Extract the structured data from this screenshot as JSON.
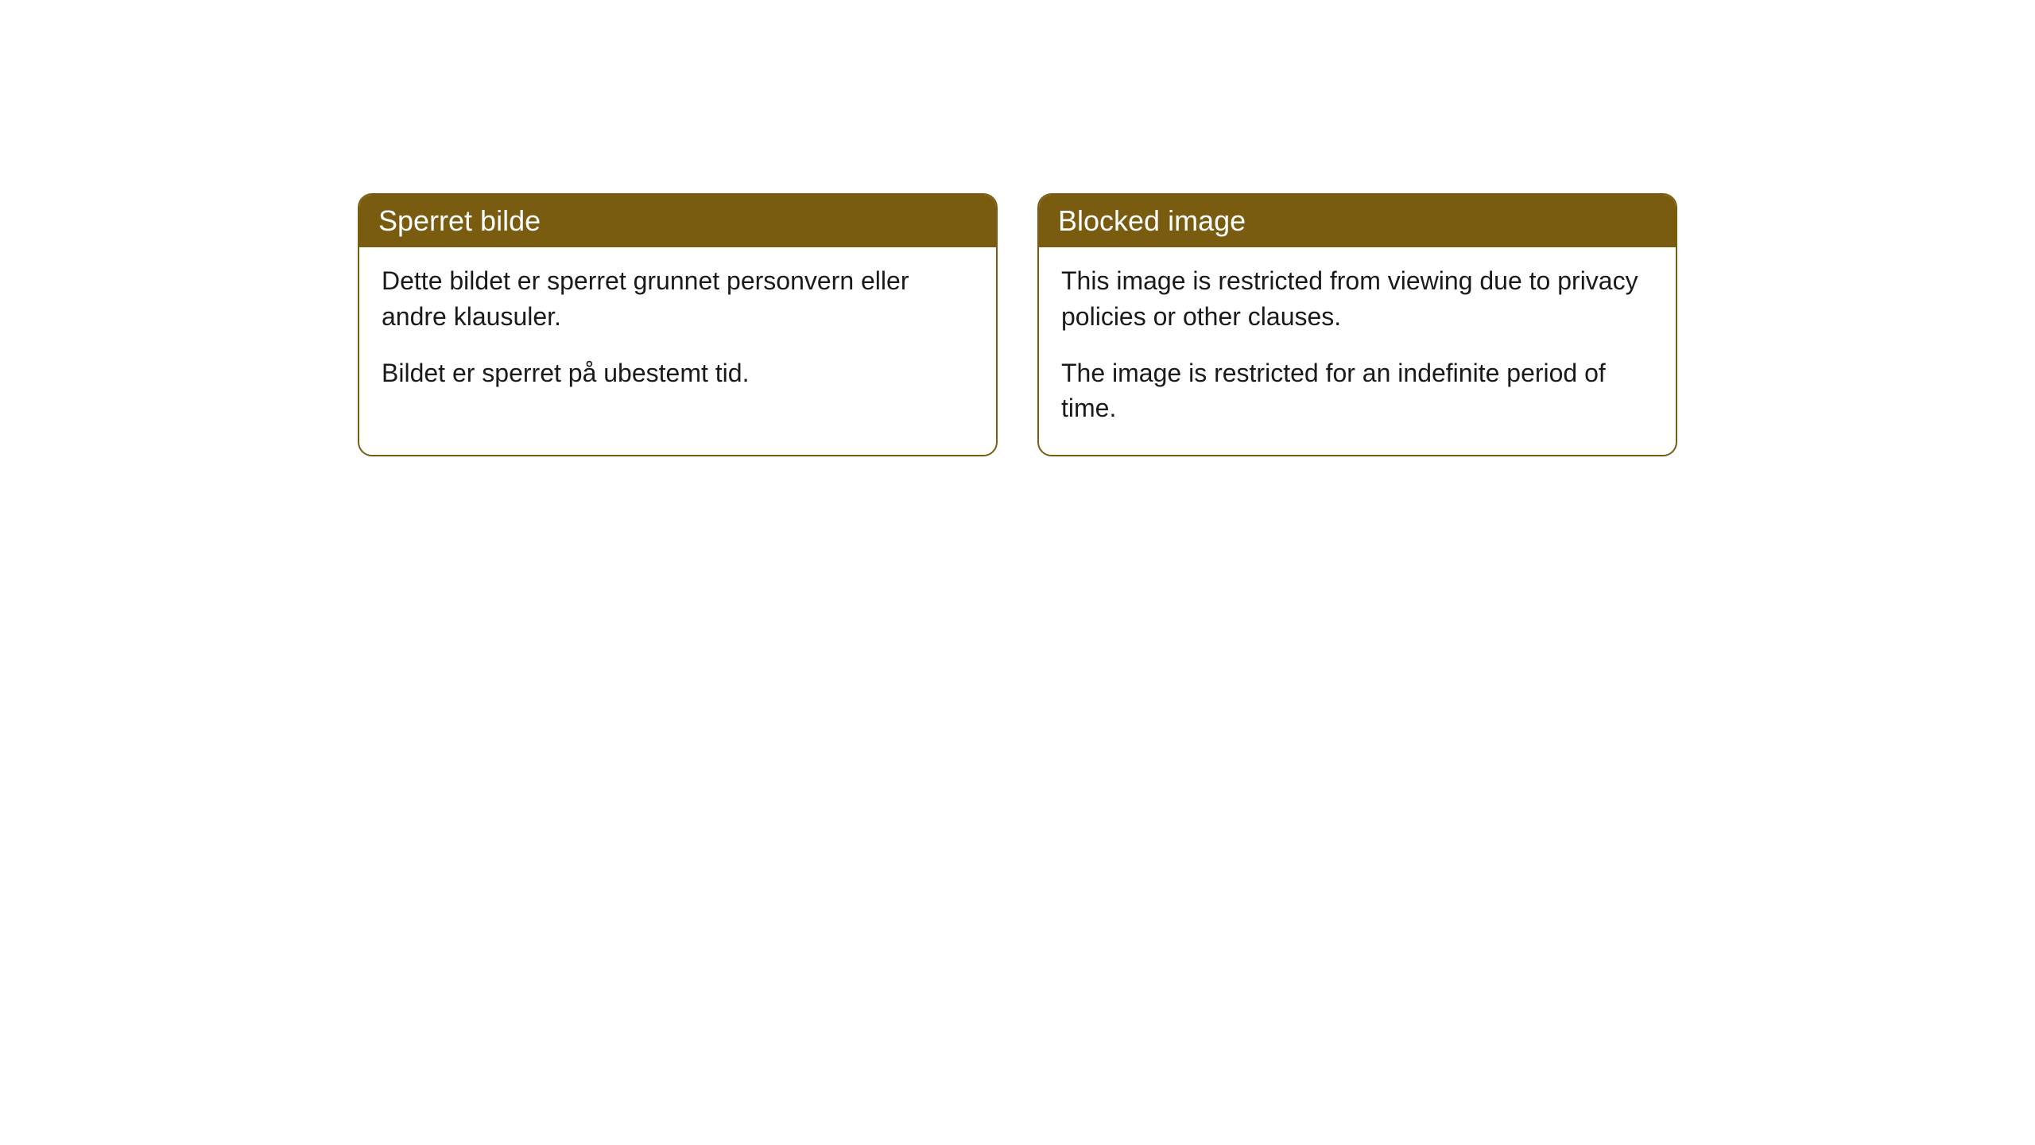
{
  "cards": [
    {
      "title": "Sperret bilde",
      "paragraph1": "Dette bildet er sperret grunnet personvern eller andre klausuler.",
      "paragraph2": "Bildet er sperret på ubestemt tid."
    },
    {
      "title": "Blocked image",
      "paragraph1": "This image is restricted from viewing due to privacy policies or other clauses.",
      "paragraph2": "The image is restricted for an indefinite period of time."
    }
  ],
  "style": {
    "header_bg": "#7a5c11",
    "header_text_color": "#ffffff",
    "border_color": "#7a5c11",
    "body_bg": "#ffffff",
    "body_text_color": "#1a1a1a",
    "border_radius": 18,
    "header_fontsize": 36,
    "body_fontsize": 32
  }
}
